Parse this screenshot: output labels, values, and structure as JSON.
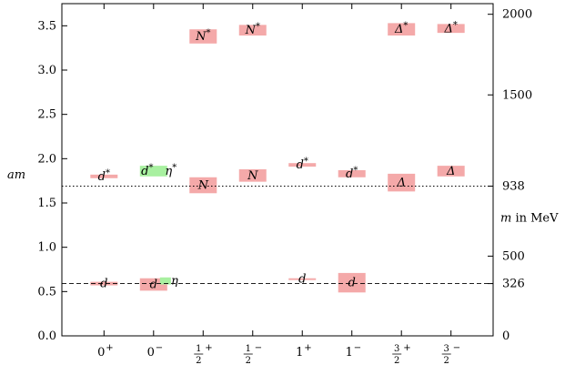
{
  "chart_data": {
    "type": "bar",
    "title": "",
    "ylabel_left": "am",
    "ylabel_right": "m in MeV",
    "ylim": [
      0,
      3.75
    ],
    "left_ticks": [
      0.0,
      0.5,
      1.0,
      1.5,
      2.0,
      2.5,
      3.0,
      3.5
    ],
    "left_tick_labels": [
      "0.0",
      "0.5",
      "1.0",
      "1.5",
      "2.0",
      "2.5",
      "3.0",
      "3.5"
    ],
    "right_ticks": [
      {
        "label": "0",
        "am": 0.0
      },
      {
        "label": "326",
        "am": 0.59
      },
      {
        "label": "500",
        "am": 0.9
      },
      {
        "label": "938",
        "am": 1.69
      },
      {
        "label": "1500",
        "am": 2.72
      },
      {
        "label": "2000",
        "am": 3.63
      }
    ],
    "categories": [
      {
        "sign": "0",
        "parity": "+",
        "frac": false
      },
      {
        "sign": "0",
        "parity": "−",
        "frac": false
      },
      {
        "sign": "1/2",
        "parity": "+",
        "frac": true
      },
      {
        "sign": "1/2",
        "parity": "−",
        "frac": true
      },
      {
        "sign": "1",
        "parity": "+",
        "frac": false
      },
      {
        "sign": "1",
        "parity": "−",
        "frac": false
      },
      {
        "sign": "3/2",
        "parity": "+",
        "frac": true
      },
      {
        "sign": "3/2",
        "parity": "−",
        "frac": true
      }
    ],
    "reference_lines": [
      {
        "am": 1.69,
        "style": "dotted"
      },
      {
        "am": 0.59,
        "style": "dashed"
      }
    ],
    "states": [
      {
        "category": 0,
        "label": "d",
        "star": false,
        "value": 0.59,
        "error": 0.02,
        "color": "#f4a9a9"
      },
      {
        "category": 0,
        "label": "d",
        "star": true,
        "value": 1.8,
        "error": 0.02,
        "color": "#f4a9a9"
      },
      {
        "category": 1,
        "label": "d",
        "star": false,
        "value": 0.58,
        "error": 0.07,
        "color": "#f4a9a9"
      },
      {
        "category": 1,
        "label": "η",
        "star": false,
        "value": 0.62,
        "error": 0.04,
        "color": "#a8f0a0",
        "left_offset": 0.35
      },
      {
        "category": 1,
        "label": "d",
        "star": true,
        "value": 1.86,
        "error": 0.06,
        "color": "#a8f0a0",
        "second_label": "η",
        "second_star": true
      },
      {
        "category": 2,
        "label": "N",
        "star": false,
        "value": 1.7,
        "error": 0.09,
        "color": "#f4a9a9"
      },
      {
        "category": 2,
        "label": "N",
        "star": true,
        "value": 3.38,
        "error": 0.08,
        "color": "#f4a9a9"
      },
      {
        "category": 3,
        "label": "N",
        "star": false,
        "value": 1.81,
        "error": 0.07,
        "color": "#f4a9a9"
      },
      {
        "category": 3,
        "label": "N",
        "star": true,
        "value": 3.45,
        "error": 0.06,
        "color": "#f4a9a9"
      },
      {
        "category": 4,
        "label": "d",
        "star": false,
        "value": 0.64,
        "error": 0.01,
        "color": "#f4a9a9"
      },
      {
        "category": 4,
        "label": "d",
        "star": true,
        "value": 1.93,
        "error": 0.02,
        "color": "#f4a9a9"
      },
      {
        "category": 5,
        "label": "d",
        "star": false,
        "value": 0.6,
        "error": 0.11,
        "color": "#f4a9a9"
      },
      {
        "category": 5,
        "label": "d",
        "star": true,
        "value": 1.83,
        "error": 0.04,
        "color": "#f4a9a9"
      },
      {
        "category": 6,
        "label": "Δ",
        "star": false,
        "value": 1.73,
        "error": 0.1,
        "color": "#f4a9a9"
      },
      {
        "category": 6,
        "label": "Δ",
        "star": true,
        "value": 3.46,
        "error": 0.07,
        "color": "#f4a9a9"
      },
      {
        "category": 7,
        "label": "Δ",
        "star": false,
        "value": 1.86,
        "error": 0.06,
        "color": "#f4a9a9"
      },
      {
        "category": 7,
        "label": "Δ",
        "star": true,
        "value": 3.47,
        "error": 0.05,
        "color": "#f4a9a9"
      }
    ]
  }
}
